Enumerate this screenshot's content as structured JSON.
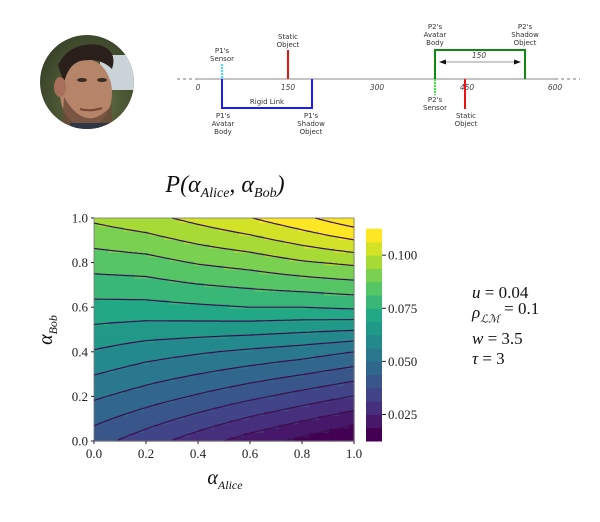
{
  "avatar": {
    "description_icon": "person-photo"
  },
  "diagram": {
    "axis_ticks": [
      "0",
      "150",
      "300",
      "450",
      "600"
    ],
    "labels": {
      "p1_sensor": [
        "P1's",
        "Sensor"
      ],
      "static_object_1": [
        "Static",
        "Object"
      ],
      "rigid_link": "Rigid Link",
      "p1_avatar_body": [
        "P1's",
        "Avatar",
        "Body"
      ],
      "p1_shadow_object": [
        "P1's",
        "Shadow",
        "Object"
      ],
      "p2_avatar_body": [
        "P2's",
        "Avatar",
        "Body"
      ],
      "p2_shadow_object": [
        "P2's",
        "Shadow",
        "Object"
      ],
      "distance": "150",
      "p2_sensor": [
        "P2's",
        "Sensor"
      ],
      "static_object_2": [
        "Static",
        "Object"
      ]
    },
    "colors": {
      "p1": "#1a1aff",
      "p1_sensor": "#33e6ff",
      "static": "#ee1111",
      "p2": "#118811",
      "p2_sensor": "#33ee33"
    }
  },
  "chart_data": {
    "type": "heatmap",
    "style": "filled-contour",
    "title": "P(α_Alice, α_Bob)",
    "title_parts": {
      "main": "P(α",
      "sub1": "Alice",
      "mid": ", α",
      "sub2": "Bob",
      "end": ")"
    },
    "xlabel": {
      "main": "α",
      "sub": "Alice"
    },
    "ylabel": {
      "main": "α",
      "sub": "Bob"
    },
    "xlim": [
      0,
      1
    ],
    "ylim": [
      0,
      1
    ],
    "x_ticks": [
      "0.0",
      "0.2",
      "0.4",
      "0.6",
      "0.8",
      "1.0"
    ],
    "y_ticks": [
      "0.0",
      "0.2",
      "0.4",
      "0.6",
      "0.8",
      "1.0"
    ],
    "x": [
      0,
      0.2,
      0.4,
      0.6,
      0.8,
      1.0
    ],
    "y": [
      0,
      0.2,
      0.4,
      0.6,
      0.8,
      1.0
    ],
    "z": [
      [
        0.04,
        0.034,
        0.028,
        0.022,
        0.017,
        0.012
      ],
      [
        0.051,
        0.047,
        0.043,
        0.039,
        0.035,
        0.031
      ],
      [
        0.062,
        0.059,
        0.057,
        0.055,
        0.053,
        0.05
      ],
      [
        0.073,
        0.073,
        0.074,
        0.075,
        0.075,
        0.076
      ],
      [
        0.084,
        0.085,
        0.088,
        0.09,
        0.093,
        0.095
      ],
      [
        0.095,
        0.098,
        0.102,
        0.106,
        0.111,
        0.117
      ]
    ],
    "levels_min": 0.0125,
    "levels_step": 0.00625,
    "levels_count": 17,
    "colormap": "viridis",
    "colorbar": {
      "ticks": [
        "0.025",
        "0.050",
        "0.075",
        "0.100"
      ],
      "tick_values": [
        0.025,
        0.05,
        0.075,
        0.1
      ],
      "range": [
        0.0125,
        0.1175
      ]
    }
  },
  "params": [
    {
      "sym": "u",
      "sub": "",
      "val": "= 0.04"
    },
    {
      "sym": "ρ",
      "sub": "ℒℳ",
      "val": "= 0.1"
    },
    {
      "sym": "w",
      "sub": "",
      "val": "= 3.5"
    },
    {
      "sym": "τ",
      "sub": "",
      "val": "= 3"
    }
  ]
}
